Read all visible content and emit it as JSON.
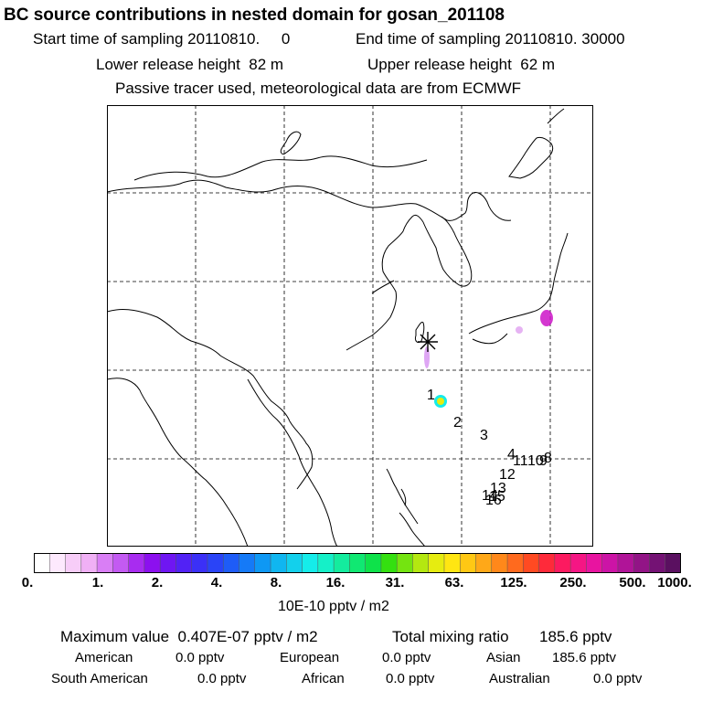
{
  "title": "BC  source contributions in nested domain for gosan_201108",
  "header": {
    "start_label": "Start time of sampling",
    "start_value": "20110810.     0",
    "end_label": "End time of sampling",
    "end_value": "20110810. 30000",
    "lower_label": "Lower release height",
    "lower_value": "82 m",
    "upper_label": "Upper release height",
    "upper_value": "62 m",
    "note": "Passive tracer used, meteorological data are from ECMWF"
  },
  "map": {
    "trajectory_labels": [
      "1",
      "2",
      "3",
      "4",
      "11",
      "10",
      "9",
      "8",
      "12",
      "13",
      "14",
      "15",
      "16"
    ],
    "receptor_marker": "asterisk"
  },
  "colorbar": {
    "ticks": [
      "0.",
      "1.",
      "2.",
      "4.",
      "8.",
      "16.",
      "31.",
      "63.",
      "125.",
      "250.",
      "500.",
      "1000."
    ],
    "colors": [
      "#ffffff",
      "#fde9fd",
      "#f7cdf8",
      "#f0b0f5",
      "#d97ef5",
      "#c35af2",
      "#a82cf0",
      "#8c10ef",
      "#6f16f2",
      "#5222f5",
      "#3b30f7",
      "#2a44f7",
      "#1e5cf7",
      "#157af7",
      "#0e98f4",
      "#10b6f0",
      "#13d0ec",
      "#15ecea",
      "#15f0c8",
      "#14ec9e",
      "#10e872",
      "#0ee24a",
      "#34e010",
      "#74e410",
      "#b4e810",
      "#e6ec10",
      "#ffe612",
      "#ffc814",
      "#ffa818",
      "#ff881a",
      "#ff6a1e",
      "#ff4a22",
      "#fe2a3a",
      "#fc1a60",
      "#f51684",
      "#e814a0",
      "#cc14a6",
      "#b01498",
      "#921486",
      "#741274",
      "#5a1060"
    ],
    "units": "10E-10 pptv / m2"
  },
  "stats": {
    "max_label": "Maximum value",
    "max_value": "0.407E-07 pptv / m2",
    "total_label": "Total mixing ratio",
    "total_value": "185.6 pptv"
  },
  "regions": {
    "american_label": "American",
    "american_value": "0.0 pptv",
    "european_label": "European",
    "european_value": "0.0 pptv",
    "asian_label": "Asian",
    "asian_value": "185.6 pptv",
    "south_american_label": "South American",
    "south_american_value": "0.0 pptv",
    "african_label": "African",
    "african_value": "0.0 pptv",
    "australian_label": "Australian",
    "australian_value": "0.0 pptv"
  }
}
